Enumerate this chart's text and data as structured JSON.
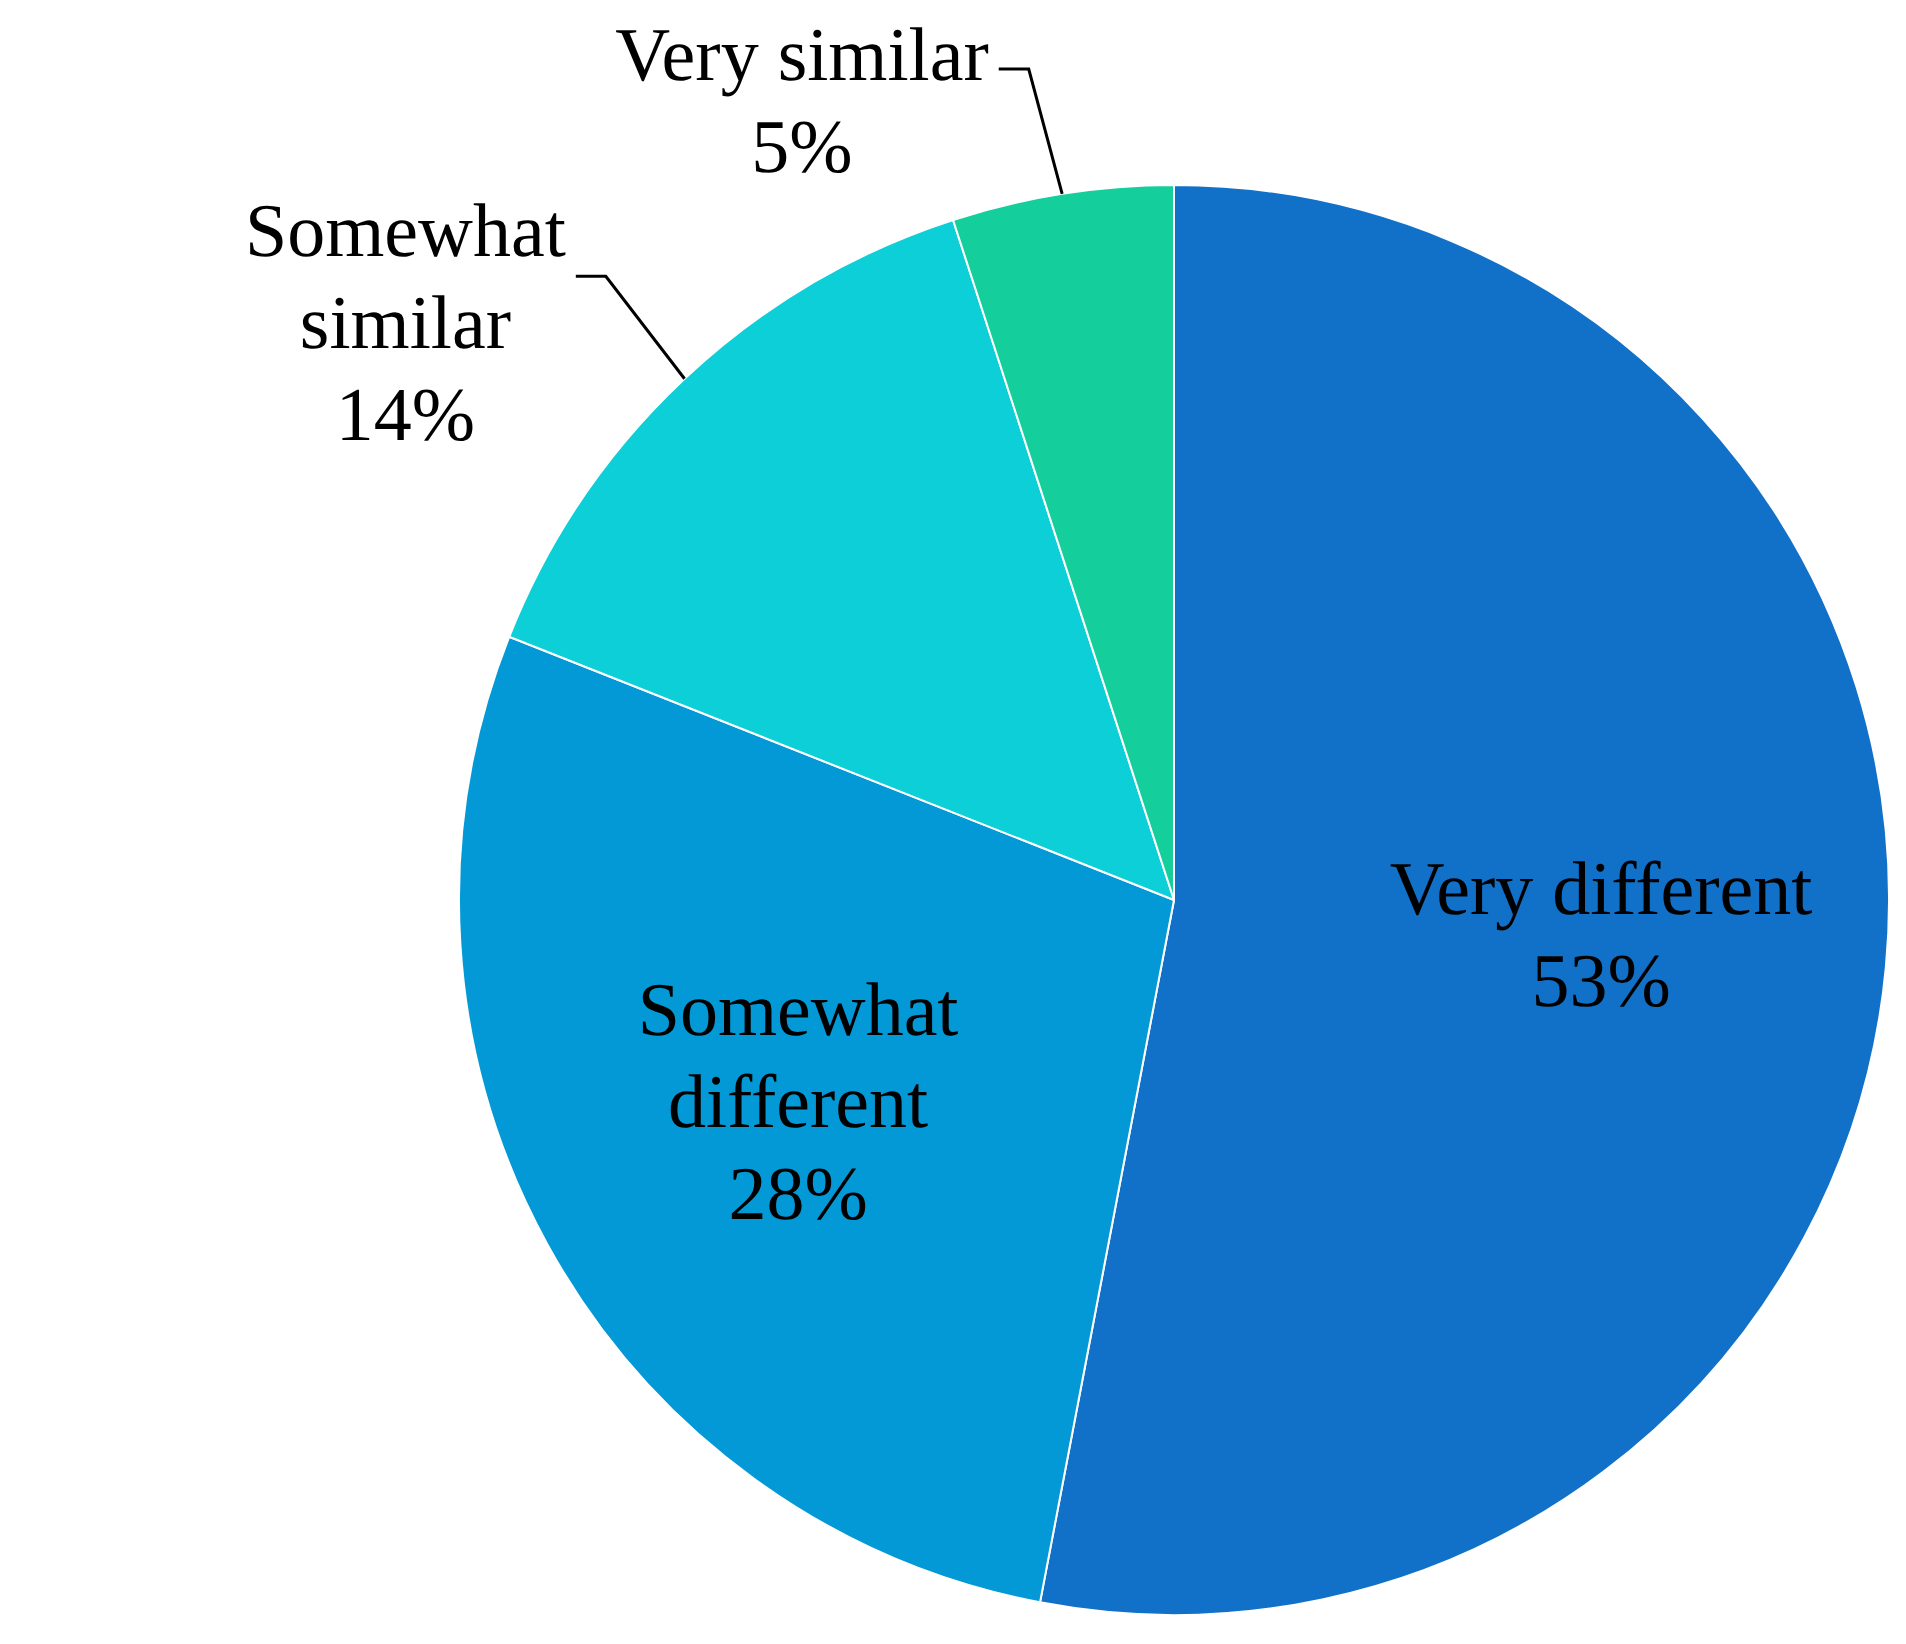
{
  "chart_data": {
    "type": "pie",
    "categories": [
      "Very different",
      "Somewhat different",
      "Somewhat similar",
      "Very similar"
    ],
    "values": [
      53,
      28,
      14,
      5
    ],
    "colors": [
      "#1170c8",
      "#0399d6",
      "#0ccfd8",
      "#14cf9c"
    ],
    "value_labels": [
      "53%",
      "28%",
      "14%",
      "5%"
    ],
    "legend": false
  }
}
